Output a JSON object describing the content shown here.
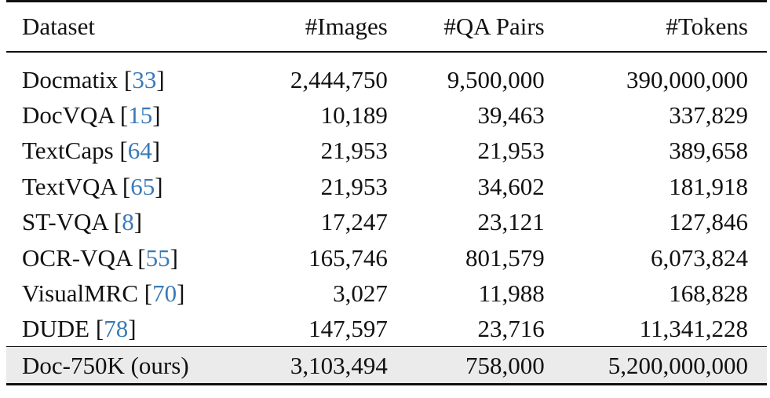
{
  "table": {
    "headers": [
      "Dataset",
      "#Images",
      "#QA Pairs",
      "#Tokens"
    ],
    "rows": [
      {
        "name": "Docmatix",
        "cite": "33",
        "images": "2,444,750",
        "qa": "9,500,000",
        "tokens": "390,000,000"
      },
      {
        "name": "DocVQA",
        "cite": "15",
        "images": "10,189",
        "qa": "39,463",
        "tokens": "337,829"
      },
      {
        "name": "TextCaps",
        "cite": "64",
        "images": "21,953",
        "qa": "21,953",
        "tokens": "389,658"
      },
      {
        "name": "TextVQA",
        "cite": "65",
        "images": "21,953",
        "qa": "34,602",
        "tokens": "181,918"
      },
      {
        "name": "ST-VQA",
        "cite": "8",
        "images": "17,247",
        "qa": "23,121",
        "tokens": "127,846"
      },
      {
        "name": "OCR-VQA",
        "cite": "55",
        "images": "165,746",
        "qa": "801,579",
        "tokens": "6,073,824"
      },
      {
        "name": "VisualMRC",
        "cite": "70",
        "images": "3,027",
        "qa": "11,988",
        "tokens": "168,828"
      },
      {
        "name": "DUDE",
        "cite": "78",
        "images": "147,597",
        "qa": "23,716",
        "tokens": "11,341,228"
      }
    ],
    "ours": {
      "name": "Doc-750K (ours)",
      "images": "3,103,494",
      "qa": "758,000",
      "tokens": "5,200,000,000"
    }
  }
}
